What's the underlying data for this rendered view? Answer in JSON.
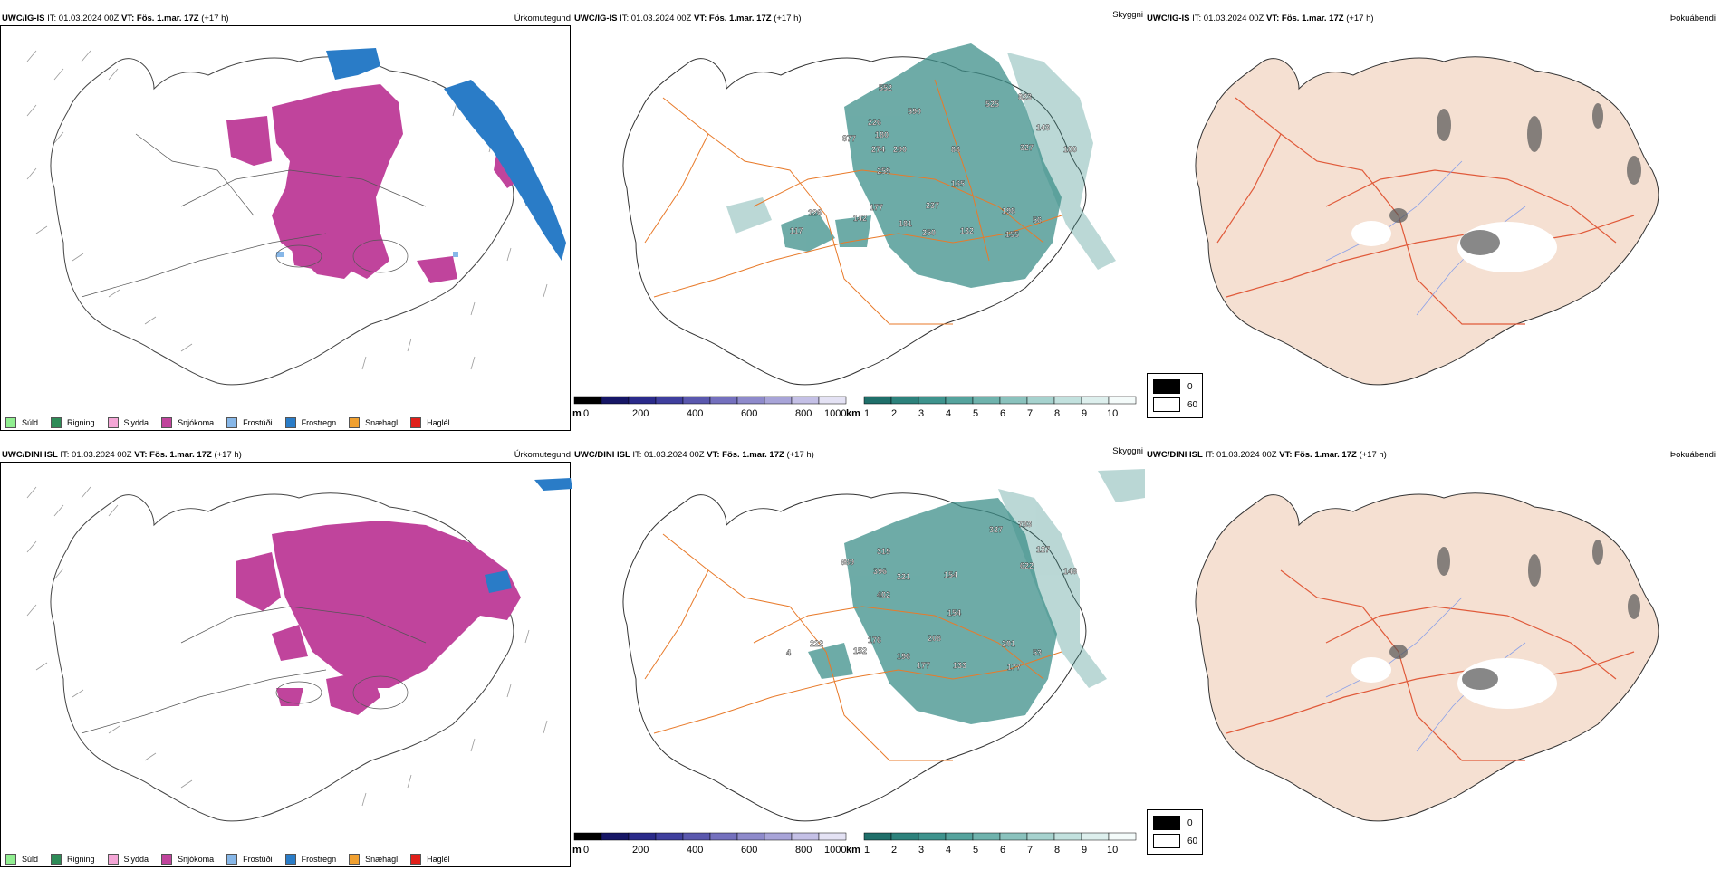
{
  "rows": [
    {
      "source": "UWC/IG-IS",
      "it": "IT: 01.03.2024 00Z",
      "vt": "VT: Fös. 1.mar. 17Z",
      "lead": "(+17 h)"
    },
    {
      "source": "UWC/DINI ISL",
      "it": "IT: 01.03.2024 00Z",
      "vt": "VT: Fös. 1.mar. 17Z",
      "lead": "(+17 h)"
    }
  ],
  "fields": {
    "precip": "Úrkomutegund",
    "vis": "Skyggni",
    "fog": "Þokuábendi"
  },
  "precip_legend": [
    {
      "label": "Súld",
      "color": "#90ee90"
    },
    {
      "label": "Rigning",
      "color": "#2e8b57"
    },
    {
      "label": "Slydda",
      "color": "#f4a6d6"
    },
    {
      "label": "Snjókoma",
      "color": "#c0449c"
    },
    {
      "label": "Frostúði",
      "color": "#87b7e8"
    },
    {
      "label": "Frostregn",
      "color": "#2a7cc7"
    },
    {
      "label": "Snæhagl",
      "color": "#f0a030"
    },
    {
      "label": "Haglél",
      "color": "#e0201a"
    }
  ],
  "height_bar": {
    "unit": "m",
    "ticks": [
      "0",
      "200",
      "400",
      "600",
      "800",
      "1000"
    ]
  },
  "vis_bar": {
    "unit": "km",
    "ticks": [
      "1",
      "2",
      "3",
      "4",
      "5",
      "6",
      "7",
      "8",
      "9",
      "10"
    ]
  },
  "fog_legend": {
    "a": "0",
    "b": "60"
  },
  "ceiling_labels_top": [
    "552",
    "590",
    "226",
    "180",
    "877",
    "274",
    "290",
    "259",
    "525",
    "823",
    "143",
    "327",
    "100",
    "88",
    "165",
    "237",
    "198",
    "56",
    "181",
    "250",
    "132",
    "155",
    "142",
    "177",
    "126",
    "117"
  ],
  "ceiling_labels_bot": [
    "327",
    "783",
    "127",
    "622",
    "319",
    "889",
    "396",
    "221",
    "402",
    "154",
    "148",
    "154",
    "208",
    "201",
    "53",
    "196",
    "177",
    "133",
    "177",
    "152",
    "176",
    "222",
    "4"
  ],
  "colors": {
    "snow": "#c0449c",
    "ice": "#2a7cc7",
    "teal": "#3d8f8a",
    "roads": "#e87a2a",
    "fogbg": "#f5e0d2"
  }
}
